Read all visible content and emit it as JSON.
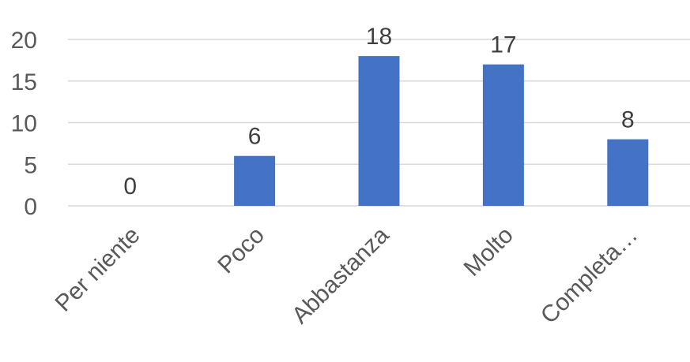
{
  "chart_data": {
    "type": "bar",
    "categories": [
      "Per niente",
      "Poco",
      "Abbastanza",
      "Molto",
      "Completa…"
    ],
    "values": [
      0,
      6,
      18,
      17,
      8
    ],
    "data_labels": [
      "0",
      "6",
      "18",
      "17",
      "8"
    ],
    "yticks": [
      "0",
      "5",
      "10",
      "15",
      "20"
    ],
    "ylim": [
      0,
      20
    ],
    "grid": true,
    "legend": "none",
    "colors": {
      "bar": "#4472c4",
      "grid": "#d9d9d9",
      "text": "#595959"
    }
  }
}
